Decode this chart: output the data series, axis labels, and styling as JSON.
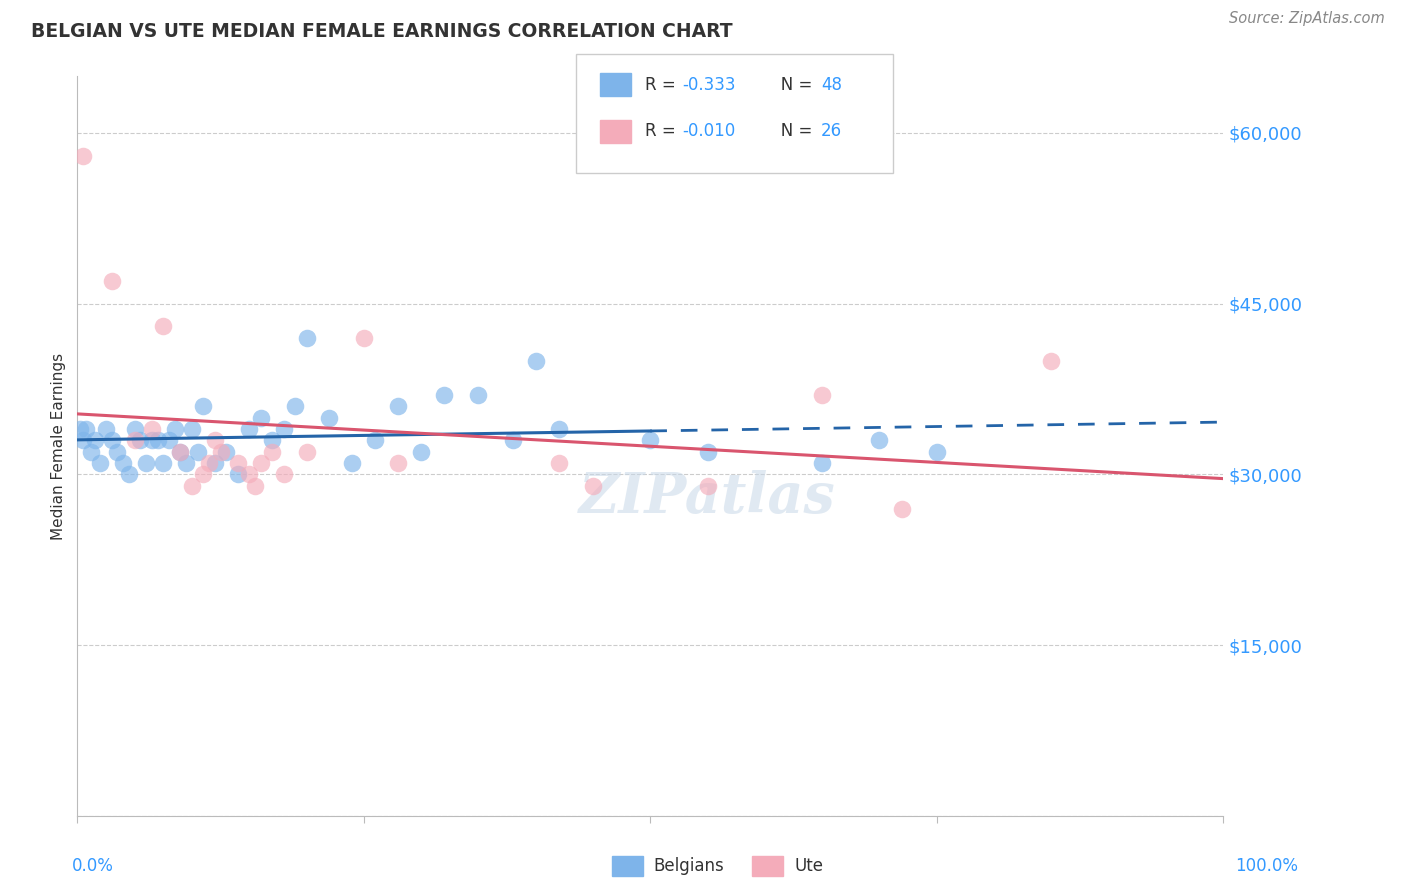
{
  "title": "BELGIAN VS UTE MEDIAN FEMALE EARNINGS CORRELATION CHART",
  "source": "Source: ZipAtlas.com",
  "ylabel": "Median Female Earnings",
  "yticks": [
    0,
    15000,
    30000,
    45000,
    60000
  ],
  "ytick_labels": [
    "",
    "$15,000",
    "$30,000",
    "$45,000",
    "$60,000"
  ],
  "belgians_R": "-0.333",
  "belgians_N": "48",
  "ute_R": "-0.010",
  "ute_N": "26",
  "belgians_color": "#7EB4EA",
  "ute_color": "#F4ACBA",
  "trend_belgian_color": "#2464A8",
  "trend_ute_color": "#D9556E",
  "tick_label_color": "#3399FF",
  "belgians_x": [
    0.2,
    0.5,
    0.8,
    1.2,
    1.5,
    2.0,
    2.5,
    3.0,
    3.5,
    4.0,
    4.5,
    5.0,
    5.5,
    6.0,
    6.5,
    7.0,
    7.5,
    8.0,
    8.5,
    9.0,
    9.5,
    10.0,
    10.5,
    11.0,
    12.0,
    13.0,
    14.0,
    15.0,
    16.0,
    17.0,
    18.0,
    19.0,
    20.0,
    22.0,
    24.0,
    26.0,
    28.0,
    30.0,
    32.0,
    35.0,
    38.0,
    40.0,
    42.0,
    50.0,
    55.0,
    65.0,
    70.0,
    75.0
  ],
  "belgians_y": [
    34000,
    33000,
    34000,
    32000,
    33000,
    31000,
    34000,
    33000,
    32000,
    31000,
    30000,
    34000,
    33000,
    31000,
    33000,
    33000,
    31000,
    33000,
    34000,
    32000,
    31000,
    34000,
    32000,
    36000,
    31000,
    32000,
    30000,
    34000,
    35000,
    33000,
    34000,
    36000,
    42000,
    35000,
    31000,
    33000,
    36000,
    32000,
    37000,
    37000,
    33000,
    40000,
    34000,
    33000,
    32000,
    31000,
    33000,
    32000
  ],
  "ute_x": [
    0.5,
    3.0,
    5.0,
    6.5,
    7.5,
    9.0,
    10.0,
    11.0,
    11.5,
    12.0,
    12.5,
    14.0,
    15.0,
    15.5,
    16.0,
    17.0,
    18.0,
    20.0,
    25.0,
    28.0,
    42.0,
    45.0,
    55.0,
    65.0,
    72.0,
    85.0
  ],
  "ute_y": [
    58000,
    47000,
    33000,
    34000,
    43000,
    32000,
    29000,
    30000,
    31000,
    33000,
    32000,
    31000,
    30000,
    29000,
    31000,
    32000,
    30000,
    32000,
    42000,
    31000,
    31000,
    29000,
    29000,
    37000,
    27000,
    40000
  ],
  "xlim": [
    0,
    100
  ],
  "ylim": [
    0,
    65000
  ],
  "solid_end_pct": 50
}
